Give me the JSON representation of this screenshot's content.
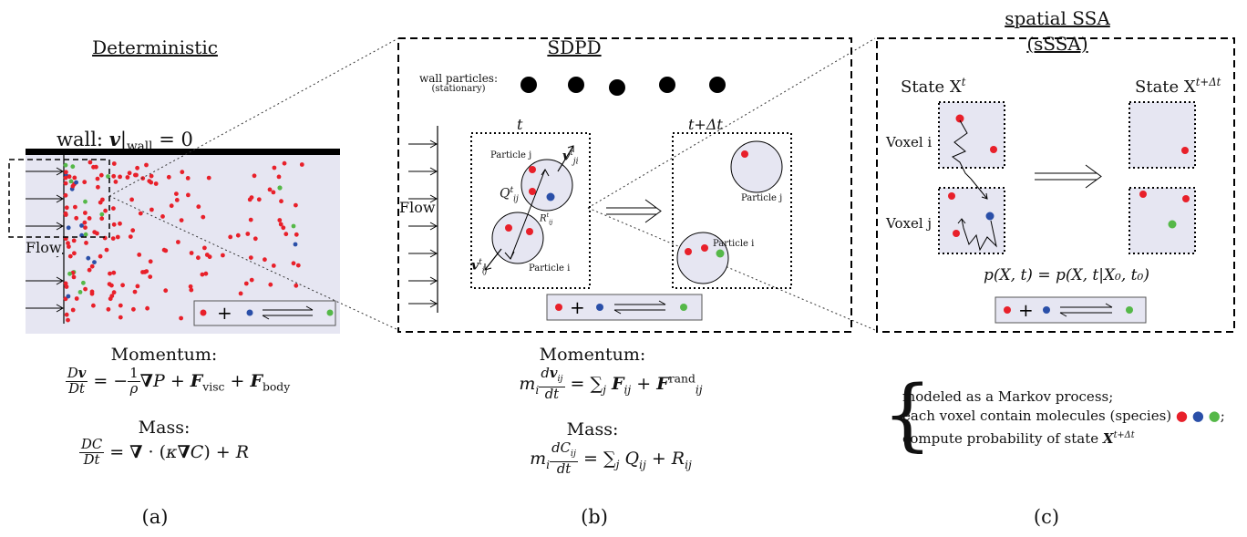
{
  "panel_a": {
    "title": "Deterministic",
    "wall_label": "wall:",
    "wall_eq": "= 0",
    "flow_label": "Flow",
    "momentum_label": "Momentum:",
    "mass_label": "Mass:",
    "caption": "(a)"
  },
  "panel_b": {
    "title": "SDPD",
    "wall_particles_label": "wall particles:",
    "wall_particles_sub": "(stationary)",
    "time_t": "t",
    "time_t_dt": "t+Δt",
    "flow_label": "Flow",
    "particle_j": "Particle j",
    "particle_i": "Particle i",
    "momentum_label": "Momentum:",
    "mass_label": "Mass:",
    "caption": "(b)"
  },
  "panel_c": {
    "title_line1": "spatial SSA",
    "title_line2": "(sSSA)",
    "state_left": "State X",
    "state_right": "State X",
    "voxel_i": "Voxel i",
    "voxel_j": "Voxel j",
    "prob_eq": "p(X, t) = p(X, t|X₀, t₀)",
    "note_line1": "modeled as a Markov process;",
    "note_line2": "each voxel contain molecules (species)",
    "note_line3": "compute probability of state",
    "caption": "(c)"
  },
  "colors": {
    "red": "#e8202a",
    "blue": "#2a4fa8",
    "green": "#55b848",
    "fluid": "#e6e6f2"
  }
}
